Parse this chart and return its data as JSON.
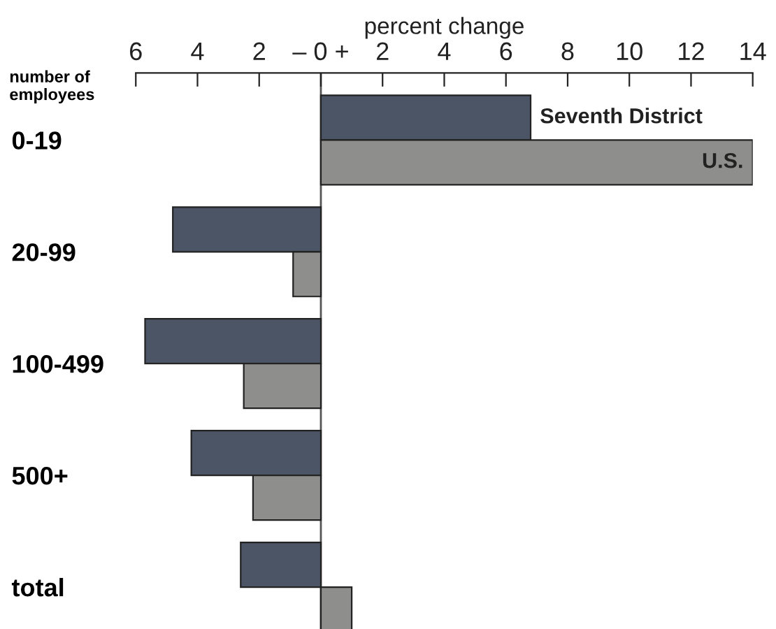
{
  "chart_data": {
    "type": "bar",
    "orientation": "horizontal",
    "xlabel": "percent change",
    "ylabel": "number of employees",
    "categories": [
      "0-19",
      "20-99",
      "100-499",
      "500+",
      "total"
    ],
    "series": [
      {
        "name": "Seventh District",
        "color": "#4b5565",
        "values": [
          6.8,
          -4.8,
          -5.7,
          -4.2,
          -2.6
        ]
      },
      {
        "name": "U.S.",
        "color": "#8e8f8c",
        "values": [
          14.0,
          -0.9,
          -2.5,
          -2.2,
          1.0
        ]
      }
    ],
    "xlim": [
      -6,
      14
    ],
    "xticks": [
      {
        "value": -6,
        "label": "6"
      },
      {
        "value": -4,
        "label": "4"
      },
      {
        "value": -2,
        "label": "2"
      },
      {
        "value": 0,
        "label": "– 0 +"
      },
      2,
      4,
      6,
      8,
      10,
      12,
      14
    ],
    "ref_lines": [
      {
        "axis": "x",
        "value": 0,
        "color": "#555555"
      }
    ],
    "grid": false,
    "legend": false
  }
}
